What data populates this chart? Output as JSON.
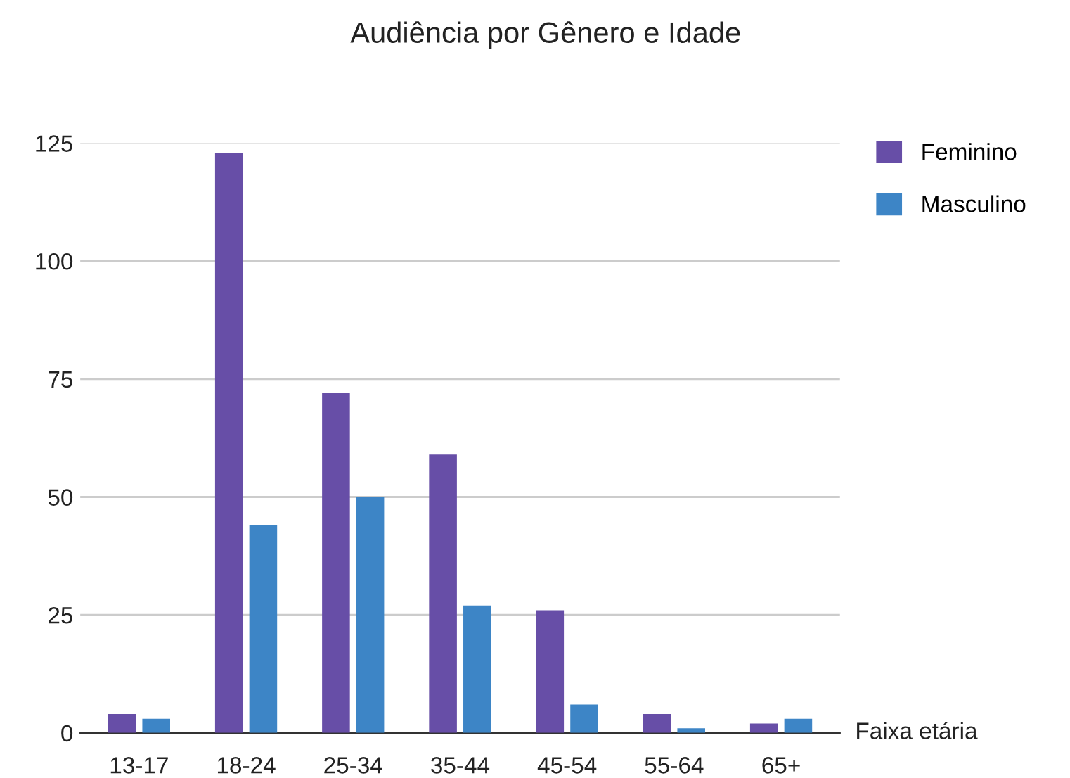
{
  "chart_data": {
    "type": "bar",
    "title": "Audiência por Gênero e Idade",
    "xlabel": "Faixa etária",
    "categories": [
      "13-17",
      "18-24",
      "25-34",
      "35-44",
      "45-54",
      "55-64",
      "65+"
    ],
    "series": [
      {
        "name": "Feminino",
        "color": "#674ea7",
        "values": [
          4,
          123,
          72,
          59,
          26,
          4,
          2
        ]
      },
      {
        "name": "Masculino",
        "color": "#3d85c6",
        "values": [
          3,
          44,
          50,
          27,
          6,
          1,
          3
        ]
      }
    ],
    "ylim": [
      0,
      125
    ],
    "yticks": [
      0,
      25,
      50,
      75,
      100,
      125
    ],
    "grid": "y",
    "legend": "top right"
  }
}
